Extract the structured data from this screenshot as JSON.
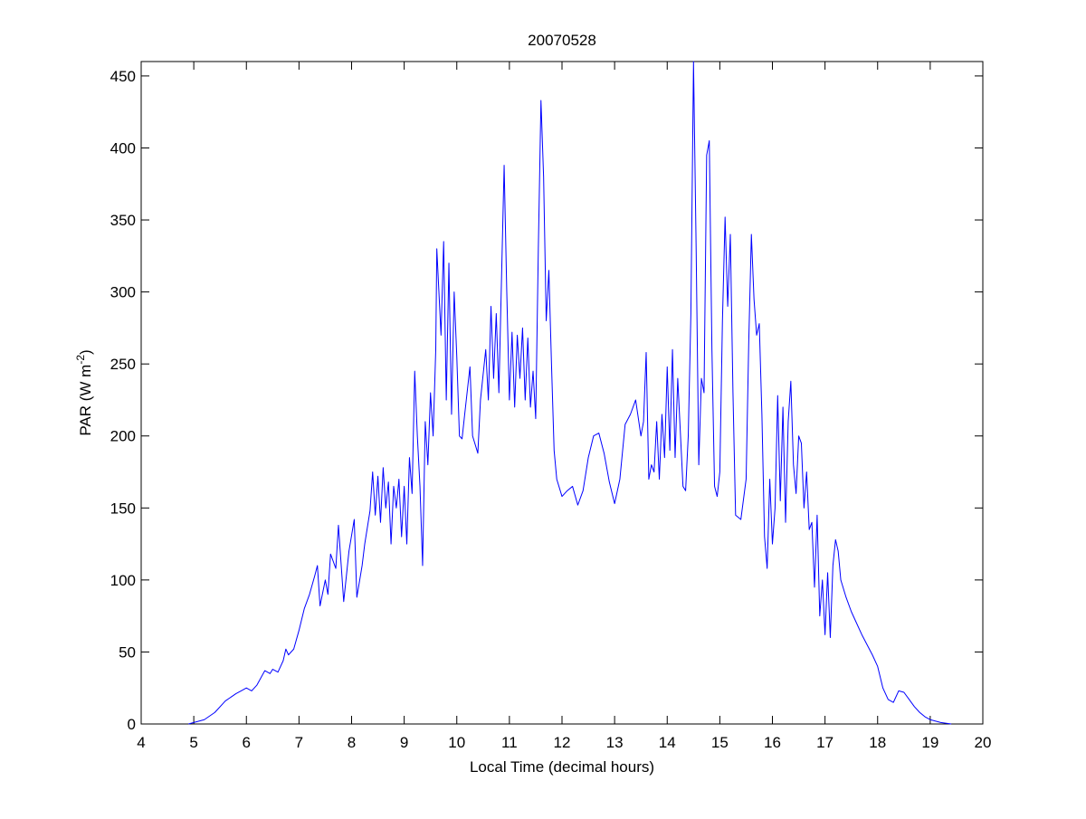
{
  "chart_data": {
    "type": "line",
    "title": "20070528",
    "xlabel": "Local Time (decimal hours)",
    "ylabel": {
      "text": "PAR (W m",
      "superscript": "-2",
      "suffix": ")"
    },
    "color": "#0000ff",
    "xlim": [
      4,
      20
    ],
    "xticks": [
      4,
      5,
      6,
      7,
      8,
      9,
      10,
      11,
      12,
      13,
      14,
      15,
      16,
      17,
      18,
      19,
      20
    ],
    "ylim": [
      0,
      460
    ],
    "yticks": [
      0,
      50,
      100,
      150,
      200,
      250,
      300,
      350,
      400,
      450
    ],
    "grid": false,
    "x": [
      4.9,
      5.0,
      5.2,
      5.4,
      5.6,
      5.8,
      6.0,
      6.1,
      6.2,
      6.35,
      6.45,
      6.5,
      6.6,
      6.7,
      6.75,
      6.8,
      6.9,
      7.0,
      7.1,
      7.2,
      7.3,
      7.35,
      7.4,
      7.5,
      7.55,
      7.6,
      7.7,
      7.75,
      7.85,
      7.95,
      8.05,
      8.1,
      8.2,
      8.25,
      8.35,
      8.4,
      8.45,
      8.5,
      8.55,
      8.6,
      8.65,
      8.7,
      8.75,
      8.8,
      8.85,
      8.9,
      8.95,
      9.0,
      9.05,
      9.1,
      9.15,
      9.2,
      9.25,
      9.3,
      9.35,
      9.4,
      9.45,
      9.5,
      9.55,
      9.6,
      9.62,
      9.7,
      9.75,
      9.8,
      9.85,
      9.9,
      9.95,
      10.0,
      10.05,
      10.1,
      10.15,
      10.25,
      10.3,
      10.4,
      10.45,
      10.55,
      10.6,
      10.65,
      10.7,
      10.75,
      10.8,
      10.9,
      10.95,
      11.0,
      11.05,
      11.1,
      11.15,
      11.2,
      11.25,
      11.3,
      11.35,
      11.4,
      11.45,
      11.5,
      11.55,
      11.6,
      11.65,
      11.7,
      11.75,
      11.8,
      11.85,
      11.9,
      12.0,
      12.1,
      12.2,
      12.3,
      12.4,
      12.5,
      12.6,
      12.7,
      12.8,
      12.9,
      13.0,
      13.1,
      13.2,
      13.3,
      13.4,
      13.5,
      13.55,
      13.6,
      13.65,
      13.7,
      13.75,
      13.8,
      13.85,
      13.9,
      13.95,
      14.0,
      14.05,
      14.1,
      14.15,
      14.2,
      14.3,
      14.35,
      14.4,
      14.45,
      14.5,
      14.55,
      14.6,
      14.65,
      14.7,
      14.75,
      14.8,
      14.85,
      14.9,
      14.95,
      15.0,
      15.05,
      15.1,
      15.15,
      15.2,
      15.25,
      15.3,
      15.4,
      15.5,
      15.55,
      15.6,
      15.65,
      15.7,
      15.75,
      15.8,
      15.85,
      15.9,
      15.95,
      16.0,
      16.05,
      16.1,
      16.15,
      16.2,
      16.25,
      16.3,
      16.35,
      16.4,
      16.45,
      16.5,
      16.55,
      16.6,
      16.65,
      16.7,
      16.75,
      16.8,
      16.85,
      16.9,
      16.95,
      17.0,
      17.05,
      17.1,
      17.15,
      17.2,
      17.25,
      17.3,
      17.4,
      17.5,
      17.6,
      17.7,
      17.8,
      17.9,
      18.0,
      18.1,
      18.2,
      18.3,
      18.4,
      18.5,
      18.6,
      18.7,
      18.8,
      18.9,
      19.0,
      19.2,
      19.4
    ],
    "values": [
      0,
      1,
      3,
      8,
      16,
      21,
      25,
      23,
      27,
      37,
      35,
      38,
      36,
      44,
      52,
      48,
      52,
      65,
      80,
      90,
      103,
      110,
      82,
      100,
      90,
      118,
      108,
      138,
      85,
      120,
      142,
      88,
      110,
      125,
      148,
      175,
      145,
      172,
      140,
      178,
      150,
      168,
      125,
      165,
      150,
      170,
      130,
      165,
      125,
      185,
      160,
      245,
      200,
      165,
      110,
      210,
      180,
      230,
      200,
      260,
      330,
      270,
      335,
      225,
      320,
      215,
      300,
      255,
      200,
      198,
      215,
      248,
      200,
      188,
      225,
      260,
      225,
      290,
      240,
      285,
      230,
      388,
      300,
      225,
      272,
      220,
      270,
      240,
      275,
      225,
      268,
      220,
      245,
      212,
      330,
      433,
      380,
      280,
      315,
      250,
      190,
      170,
      158,
      162,
      165,
      152,
      162,
      185,
      200,
      202,
      188,
      168,
      153,
      170,
      208,
      215,
      225,
      200,
      210,
      258,
      170,
      180,
      175,
      210,
      170,
      215,
      185,
      248,
      190,
      260,
      185,
      240,
      165,
      162,
      200,
      285,
      460,
      330,
      180,
      240,
      230,
      395,
      405,
      260,
      165,
      158,
      175,
      280,
      352,
      290,
      340,
      230,
      145,
      142,
      170,
      265,
      340,
      295,
      270,
      278,
      215,
      130,
      108,
      170,
      125,
      150,
      228,
      155,
      220,
      140,
      210,
      238,
      180,
      160,
      200,
      195,
      150,
      175,
      135,
      140,
      95,
      145,
      75,
      100,
      62,
      105,
      60,
      110,
      128,
      120,
      100,
      88,
      78,
      70,
      62,
      55,
      48,
      40,
      25,
      17,
      15,
      23,
      22,
      17,
      12,
      8,
      5,
      3,
      1,
      0
    ]
  }
}
